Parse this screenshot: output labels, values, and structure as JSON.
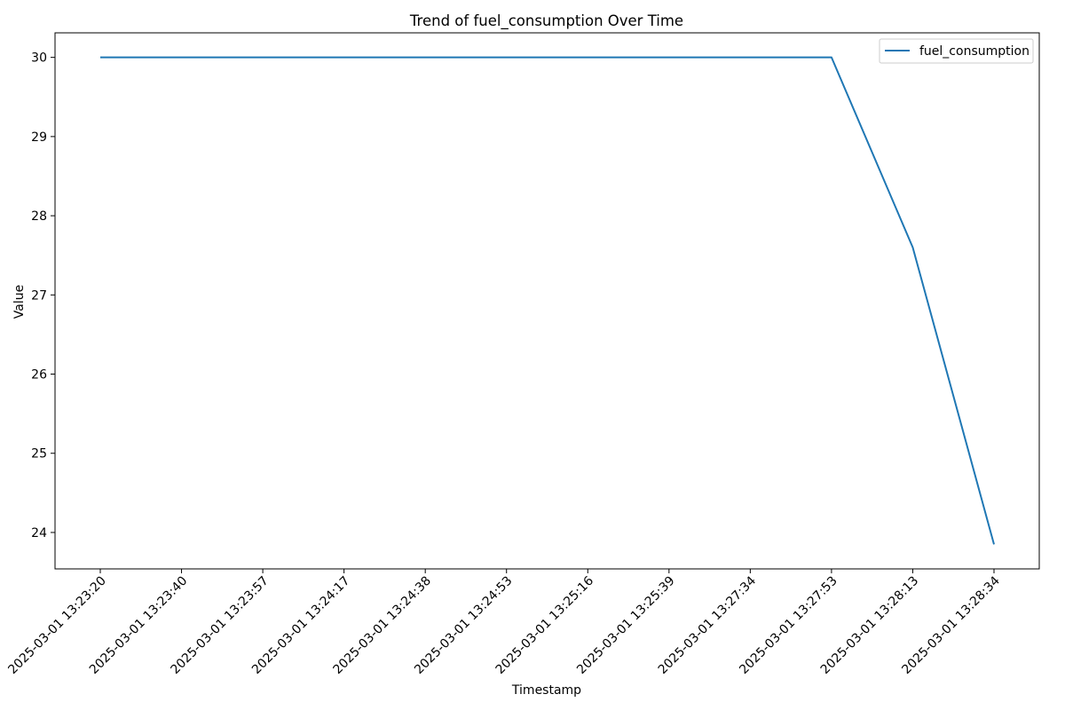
{
  "chart_data": {
    "type": "line",
    "title": "Trend of fuel_consumption Over Time",
    "xlabel": "Timestamp",
    "ylabel": "Value",
    "categories": [
      "2025-03-01 13:23:20",
      "2025-03-01 13:23:40",
      "2025-03-01 13:23:57",
      "2025-03-01 13:24:17",
      "2025-03-01 13:24:38",
      "2025-03-01 13:24:53",
      "2025-03-01 13:25:16",
      "2025-03-01 13:25:39",
      "2025-03-01 13:27:34",
      "2025-03-01 13:27:53",
      "2025-03-01 13:28:13",
      "2025-03-01 13:28:34"
    ],
    "series": [
      {
        "name": "fuel_consumption",
        "color": "#1f77b4",
        "values": [
          30,
          30,
          30,
          30,
          30,
          30,
          30,
          30,
          30,
          30,
          27.6,
          23.85
        ]
      }
    ],
    "yticks": [
      24,
      25,
      26,
      27,
      28,
      29,
      30
    ],
    "ylim": [
      23.54,
      30.31
    ],
    "grid": false,
    "legend_position": "top-right"
  }
}
